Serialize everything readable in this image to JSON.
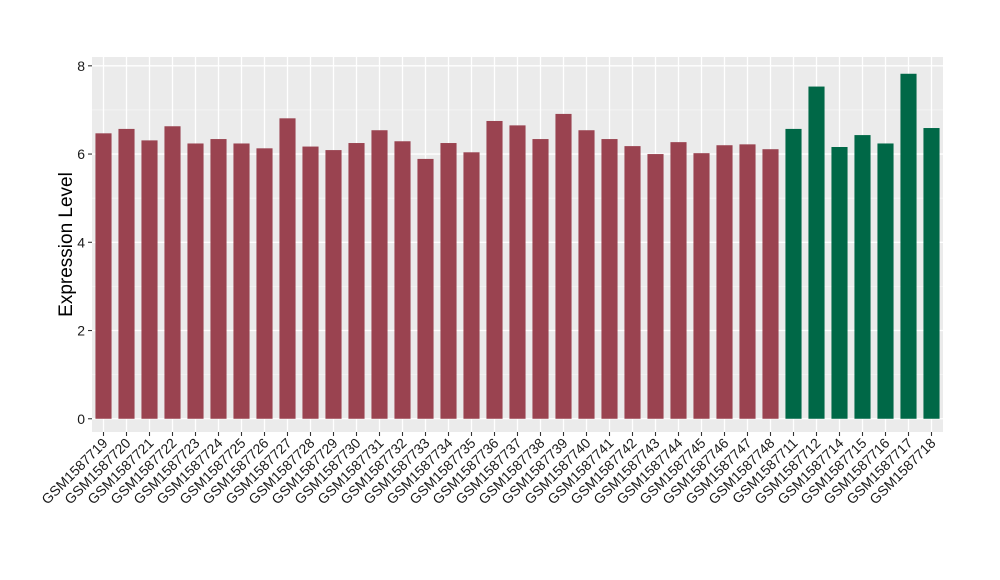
{
  "chart_data": {
    "type": "bar",
    "title": "",
    "xlabel": "",
    "ylabel": "Expression Level",
    "ylim": [
      -0.3,
      8.2
    ],
    "yticks": [
      0,
      2,
      4,
      6,
      8
    ],
    "grid": true,
    "legend": "none",
    "colors": {
      "group_1": "#9a4350",
      "group_2": "#006847",
      "panel_background": "#ebebeb",
      "grid_major": "#ffffff",
      "grid_minor": "#f5f5f5"
    },
    "categories": [
      "GSM1587719",
      "GSM1587720",
      "GSM1587721",
      "GSM1587722",
      "GSM1587723",
      "GSM1587724",
      "GSM1587725",
      "GSM1587726",
      "GSM1587727",
      "GSM1587728",
      "GSM1587729",
      "GSM1587730",
      "GSM1587731",
      "GSM1587732",
      "GSM1587733",
      "GSM1587734",
      "GSM1587735",
      "GSM1587736",
      "GSM1587737",
      "GSM1587738",
      "GSM1587739",
      "GSM1587740",
      "GSM1587741",
      "GSM1587742",
      "GSM1587743",
      "GSM1587744",
      "GSM1587745",
      "GSM1587746",
      "GSM1587747",
      "GSM1587748",
      "GSM1587711",
      "GSM1587712",
      "GSM1587714",
      "GSM1587715",
      "GSM1587716",
      "GSM1587717",
      "GSM1587718"
    ],
    "values": [
      6.47,
      6.57,
      6.31,
      6.63,
      6.24,
      6.34,
      6.24,
      6.13,
      6.81,
      6.17,
      6.09,
      6.25,
      6.54,
      6.29,
      5.89,
      6.25,
      6.04,
      6.75,
      6.65,
      6.34,
      6.91,
      6.54,
      6.34,
      6.18,
      6.0,
      6.27,
      6.02,
      6.2,
      6.22,
      6.11,
      6.57,
      7.53,
      6.16,
      6.43,
      6.24,
      7.82,
      6.59
    ],
    "groups": [
      1,
      1,
      1,
      1,
      1,
      1,
      1,
      1,
      1,
      1,
      1,
      1,
      1,
      1,
      1,
      1,
      1,
      1,
      1,
      1,
      1,
      1,
      1,
      1,
      1,
      1,
      1,
      1,
      1,
      1,
      2,
      2,
      2,
      2,
      2,
      2,
      2
    ]
  }
}
